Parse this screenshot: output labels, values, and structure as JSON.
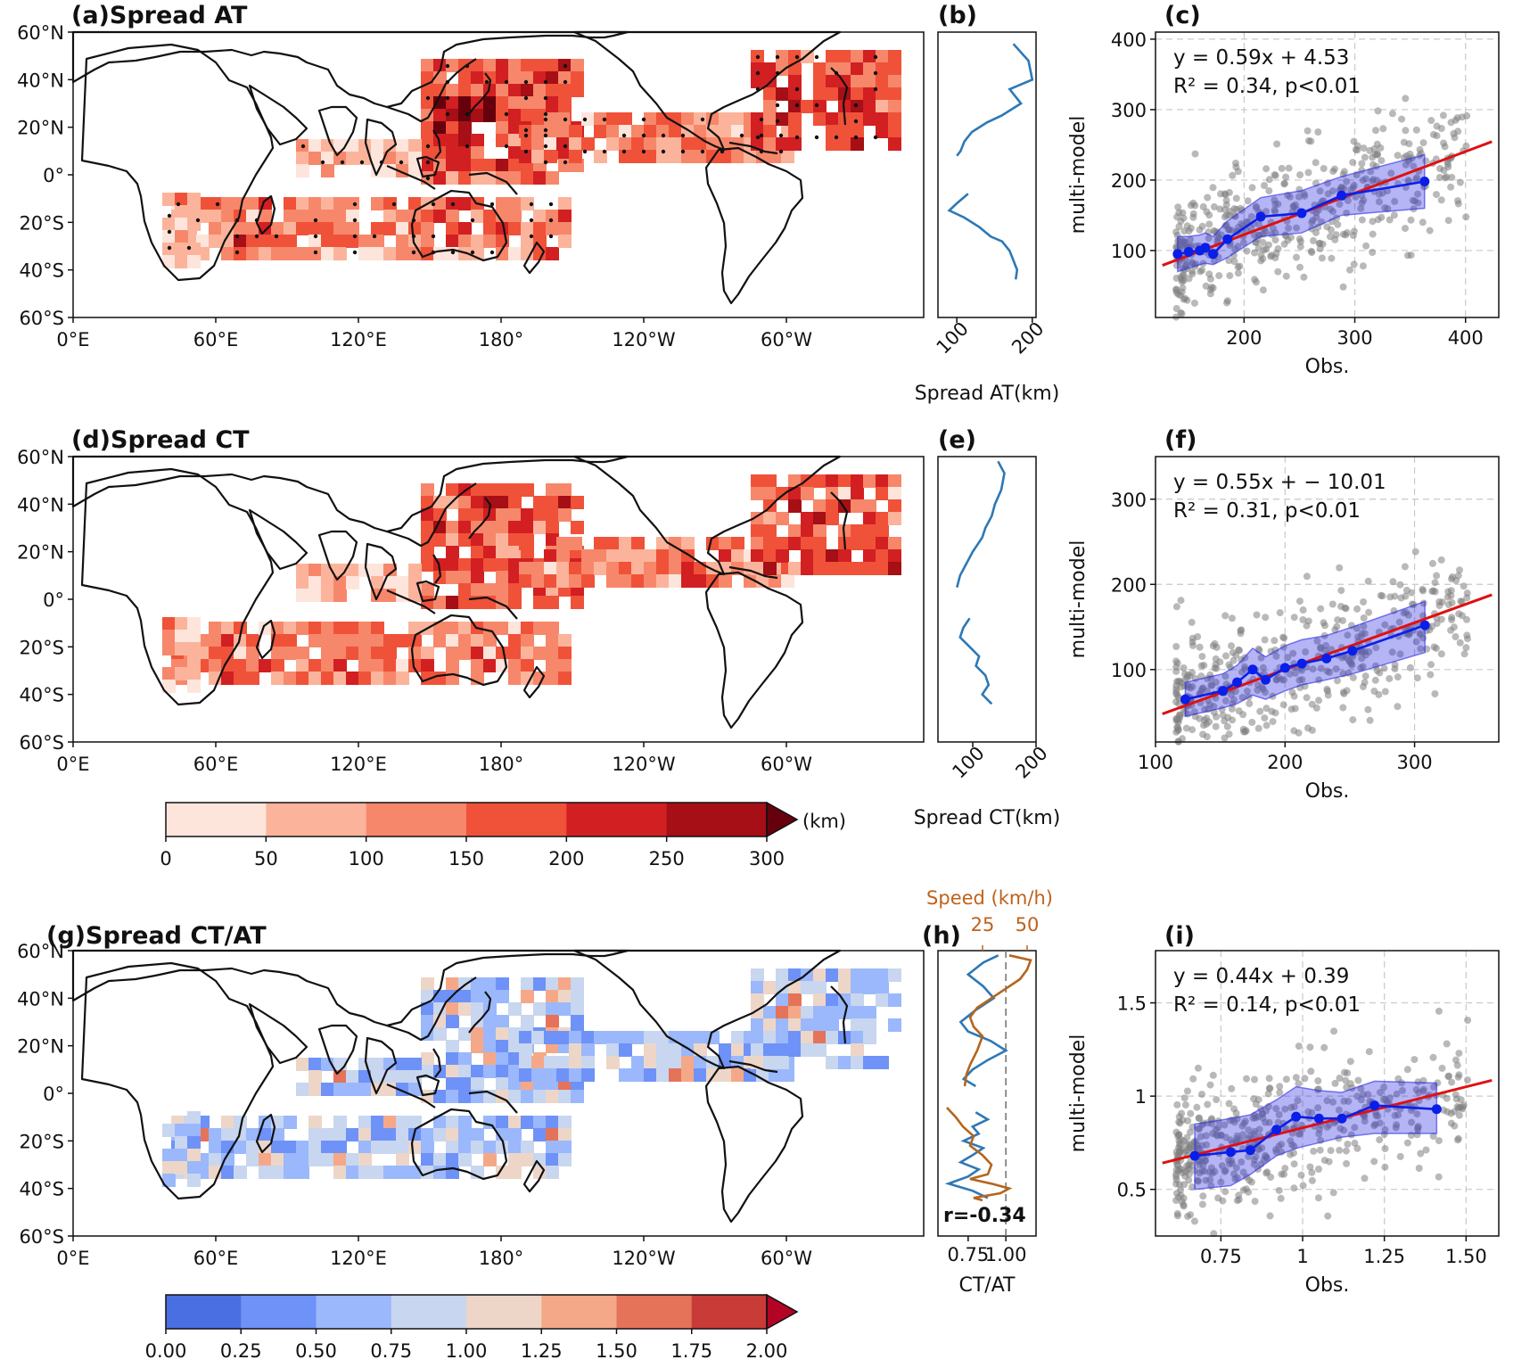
{
  "panels": {
    "a": {
      "title": "(a)Spread AT"
    },
    "b": {
      "title": "(b)",
      "xlabel": "Spread AT(km)",
      "xticks": [
        "100",
        "200"
      ]
    },
    "c": {
      "title": "(c)",
      "eq1": "y = 0.59x + 4.53",
      "eq2": "R² = 0.34, p<0.01",
      "xlabel": "Obs.",
      "ylabel": "multi-model"
    },
    "d": {
      "title": "(d)Spread CT"
    },
    "e": {
      "title": "(e)",
      "xlabel": "Spread CT(km)",
      "xticks": [
        "100",
        "200"
      ]
    },
    "f": {
      "title": "(f)",
      "eq1": "y = 0.55x + − 10.01",
      "eq2": "R² = 0.31, p<0.01",
      "xlabel": "Obs.",
      "ylabel": "multi-model"
    },
    "g": {
      "title": "(g)Spread CT/AT"
    },
    "h": {
      "title": "(h)",
      "xlabel": "CT/AT",
      "xticks": [
        "0.75",
        "1.00"
      ],
      "speed_label": "Speed (km/h)",
      "speed_ticks": [
        "25",
        "50"
      ],
      "r_label": "r=-0.34"
    },
    "i": {
      "title": "(i)",
      "eq1": "y = 0.44x + 0.39",
      "eq2": "R² = 0.14, p<0.01",
      "xlabel": "Obs.",
      "ylabel": "multi-model"
    }
  },
  "map_axes": {
    "lat_ticks": [
      "60°N",
      "40°N",
      "20°N",
      "0°",
      "20°S",
      "40°S",
      "60°S"
    ],
    "lon_ticks": [
      "0°E",
      "60°E",
      "120°E",
      "180°",
      "120°W",
      "60°W"
    ]
  },
  "colorbar_spread": {
    "unit": "(km)",
    "ticks": [
      "0",
      "50",
      "100",
      "150",
      "200",
      "250",
      "300"
    ],
    "colors": [
      "#fde5dc",
      "#fbb49b",
      "#f7876a",
      "#ef5239",
      "#d21f22",
      "#a50f15",
      "#67000d"
    ]
  },
  "colorbar_ratio": {
    "ticks": [
      "0.00",
      "0.25",
      "0.50",
      "0.75",
      "1.00",
      "1.25",
      "1.50",
      "1.75",
      "2.00"
    ],
    "colors": [
      "#4a6fe3",
      "#6e92f7",
      "#9ab8fb",
      "#c8d6ef",
      "#edd6c8",
      "#f5a888",
      "#e5735a",
      "#c83b37",
      "#b40426"
    ]
  },
  "chart_data": [
    {
      "type": "line",
      "panel": "b",
      "xlabel": "Spread AT(km)",
      "xlim": [
        75,
        205
      ],
      "series": [
        {
          "name": "north",
          "x": [
            175,
            195,
            200,
            170,
            185,
            160,
            140,
            120,
            110,
            105,
            100
          ],
          "y": [
            55,
            48,
            40,
            36,
            30,
            25,
            22,
            18,
            14,
            10,
            8
          ]
        },
        {
          "name": "south",
          "x": [
            115,
            100,
            90,
            110,
            130,
            145,
            160,
            170,
            175,
            180,
            178
          ],
          "y": [
            -8,
            -12,
            -15,
            -18,
            -22,
            -26,
            -28,
            -32,
            -36,
            -40,
            -44
          ]
        }
      ]
    },
    {
      "type": "scatter",
      "panel": "c",
      "xlabel": "Obs.",
      "ylabel": "multi-model",
      "xlim": [
        120,
        430
      ],
      "ylim": [
        5,
        410
      ],
      "xticks": [
        200,
        300,
        400
      ],
      "yticks": [
        100,
        200,
        300,
        400
      ],
      "regression": {
        "slope": 0.59,
        "intercept": 4.53
      },
      "binned": {
        "x": [
          140,
          150,
          160,
          165,
          172,
          185,
          215,
          252,
          288,
          363
        ],
        "y": [
          95,
          98,
          100,
          104,
          95,
          116,
          148,
          153,
          178,
          198
        ],
        "lo": [
          70,
          75,
          80,
          82,
          80,
          90,
          120,
          125,
          150,
          160
        ],
        "hi": [
          120,
          120,
          122,
          125,
          120,
          142,
          175,
          185,
          205,
          236
        ]
      },
      "cloud": {
        "center": [
          200,
          120
        ],
        "n": 480
      }
    },
    {
      "type": "line",
      "panel": "e",
      "xlabel": "Spread CT(km)",
      "xlim": [
        45,
        200
      ],
      "series": [
        {
          "name": "north",
          "x": [
            140,
            150,
            145,
            135,
            130,
            120,
            115,
            100,
            90,
            80,
            75
          ],
          "y": [
            58,
            53,
            46,
            40,
            35,
            30,
            26,
            20,
            15,
            10,
            5
          ]
        },
        {
          "name": "south",
          "x": [
            95,
            85,
            80,
            95,
            110,
            105,
            120,
            125,
            115,
            130
          ],
          "y": [
            -8,
            -12,
            -16,
            -20,
            -24,
            -28,
            -32,
            -36,
            -40,
            -44
          ]
        }
      ]
    },
    {
      "type": "scatter",
      "panel": "f",
      "xlabel": "Obs.",
      "ylabel": "multi-model",
      "xlim": [
        100,
        365
      ],
      "ylim": [
        15,
        350
      ],
      "xticks": [
        100,
        200,
        300
      ],
      "yticks": [
        100,
        200,
        300
      ],
      "regression": {
        "slope": 0.55,
        "intercept": -10.01
      },
      "binned": {
        "x": [
          123,
          152,
          163,
          175,
          185,
          200,
          213,
          232,
          252,
          308
        ],
        "y": [
          65,
          75,
          85,
          100,
          88,
          102,
          107,
          113,
          122,
          152
        ],
        "lo": [
          45,
          55,
          60,
          70,
          65,
          75,
          82,
          88,
          95,
          120
        ],
        "hi": [
          85,
          95,
          105,
          125,
          115,
          128,
          135,
          140,
          150,
          180
        ]
      },
      "cloud": {
        "center": [
          190,
          95
        ],
        "n": 480
      }
    },
    {
      "type": "line",
      "panel": "h",
      "xlabel": "CT/AT",
      "xlim": [
        0.55,
        1.2
      ],
      "secondary_x": {
        "label": "Speed (km/h)",
        "ticks": [
          25,
          50
        ]
      },
      "vline": 1.0,
      "r": -0.34,
      "series": [
        {
          "name": "CT/AT north",
          "x": [
            0.95,
            0.85,
            0.75,
            0.85,
            0.92,
            0.8,
            0.7,
            0.75,
            0.9,
            1.0,
            0.88,
            0.78,
            0.72,
            0.8
          ],
          "y": [
            58,
            55,
            50,
            45,
            40,
            35,
            30,
            26,
            22,
            18,
            14,
            10,
            6,
            3
          ]
        },
        {
          "name": "CT/AT south",
          "x": [
            0.8,
            0.88,
            0.78,
            0.82,
            0.72,
            0.85,
            0.78,
            0.7,
            0.82,
            0.75,
            0.62,
            0.78,
            0.88
          ],
          "y": [
            -8,
            -11,
            -14,
            -17,
            -20,
            -23,
            -26,
            -29,
            -32,
            -35,
            -38,
            -41,
            -44
          ]
        },
        {
          "name": "Speed north",
          "x": [
            40,
            52,
            50,
            46,
            38,
            30,
            22,
            18,
            20,
            25,
            22,
            18,
            16,
            15
          ],
          "y": [
            58,
            56,
            52,
            48,
            44,
            40,
            36,
            32,
            28,
            24,
            18,
            12,
            8,
            3
          ]
        },
        {
          "name": "Speed south",
          "x": [
            5,
            10,
            14,
            20,
            18,
            25,
            30,
            28,
            18,
            30,
            40,
            35,
            20,
            25
          ],
          "y": [
            -6,
            -10,
            -14,
            -18,
            -22,
            -26,
            -30,
            -34,
            -36,
            -38,
            -40,
            -42,
            -44,
            -45
          ]
        }
      ]
    },
    {
      "type": "scatter",
      "panel": "i",
      "xlabel": "Obs.",
      "ylabel": "multi-model",
      "xlim": [
        0.55,
        1.6
      ],
      "ylim": [
        0.25,
        1.78
      ],
      "xticks": [
        0.75,
        1.0,
        1.25,
        1.5
      ],
      "yticks": [
        0.5,
        1.0,
        1.5
      ],
      "regression": {
        "slope": 0.44,
        "intercept": 0.39
      },
      "binned": {
        "x": [
          0.67,
          0.78,
          0.84,
          0.92,
          0.98,
          1.05,
          1.12,
          1.22,
          1.41
        ],
        "y": [
          0.68,
          0.7,
          0.71,
          0.82,
          0.89,
          0.88,
          0.88,
          0.95,
          0.93
        ],
        "lo": [
          0.5,
          0.52,
          0.58,
          0.68,
          0.72,
          0.75,
          0.78,
          0.8,
          0.8
        ],
        "hi": [
          0.85,
          0.88,
          0.9,
          0.98,
          1.05,
          1.03,
          1.02,
          1.08,
          1.07
        ]
      },
      "cloud": {
        "center": [
          0.95,
          0.8
        ],
        "n": 480
      }
    }
  ]
}
